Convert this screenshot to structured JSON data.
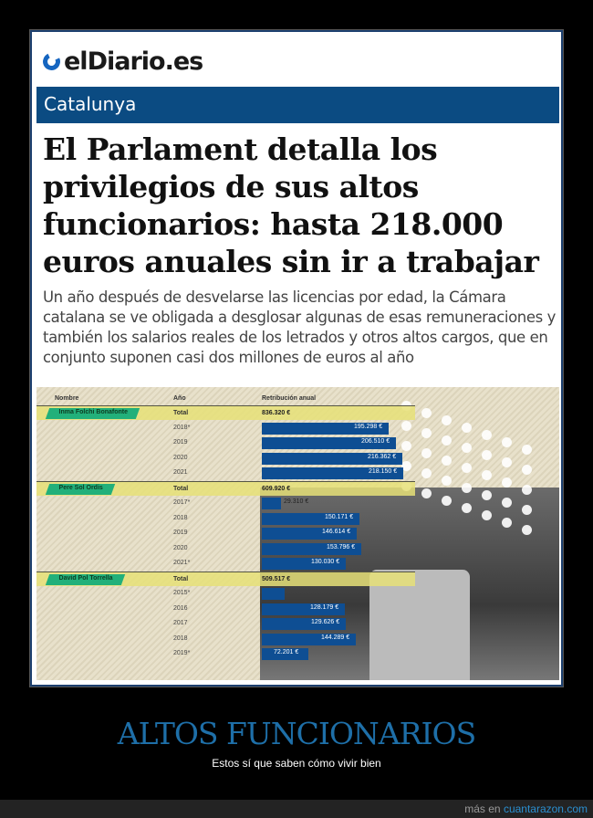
{
  "logo": "elDiario.es",
  "section": "Catalunya",
  "headline": "El Parlament detalla los privilegios de sus altos funcionarios: hasta 218.000 euros anuales sin ir a trabajar",
  "subtitle": "Un año después de desvelarse las licencias por edad, la Cámara catalana se ve obligada a desglosar algunas de esas remuneraciones y también los salarios reales de los letrados y otros altos cargos, que en conjunto suponen casi dos millones de euros al año",
  "table": {
    "headers": [
      "Nombre",
      "Año",
      "Retribución anual"
    ],
    "total_label": "Total",
    "people": [
      {
        "name": "Inma Folchi Bonafonte",
        "total": "836.320 €",
        "years": [
          {
            "y": "2018*",
            "v": 195298,
            "t": "195.298 €"
          },
          {
            "y": "2019",
            "v": 206510,
            "t": "206.510 €"
          },
          {
            "y": "2020",
            "v": 216362,
            "t": "216.362 €"
          },
          {
            "y": "2021",
            "v": 218150,
            "t": "218.150 €"
          }
        ]
      },
      {
        "name": "Pere Sol Ordis",
        "total": "609.920 €",
        "years": [
          {
            "y": "2017*",
            "v": 29310,
            "t": "29.310 €"
          },
          {
            "y": "2018",
            "v": 150171,
            "t": "150.171 €"
          },
          {
            "y": "2019",
            "v": 146614,
            "t": "146.614 €"
          },
          {
            "y": "2020",
            "v": 153796,
            "t": "153.796 €"
          },
          {
            "y": "2021*",
            "v": 130030,
            "t": "130.030 €"
          }
        ]
      },
      {
        "name": "David Pol Torrella",
        "total": "509.517 €",
        "years": [
          {
            "y": "2015*",
            "v": 35222,
            "t": ""
          },
          {
            "y": "2016",
            "v": 128179,
            "t": "128.179 €"
          },
          {
            "y": "2017",
            "v": 129626,
            "t": "129.626 €"
          },
          {
            "y": "2018",
            "v": 144289,
            "t": "144.289 €"
          },
          {
            "y": "2019*",
            "v": 72201,
            "t": "72.201 €"
          }
        ]
      }
    ]
  },
  "caption": "ALTOS FUNCIONARIOS",
  "caption_sub": "Estos sí que saben cómo vivir bien",
  "footer": {
    "prefix": "más en",
    "link": "cuantarazon.com"
  }
}
